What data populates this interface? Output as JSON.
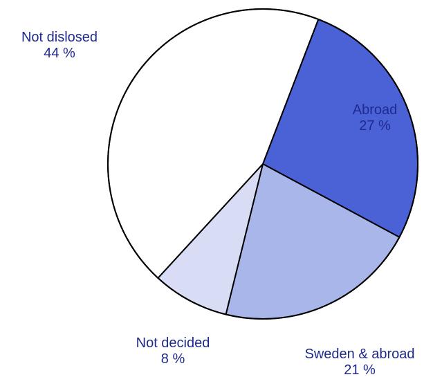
{
  "chart_data": {
    "type": "pie",
    "title": "",
    "slices": [
      {
        "label": "Abroad",
        "value": 27,
        "value_label": "27 %",
        "color": "#4a62d6"
      },
      {
        "label": "Sweden & abroad",
        "value": 21,
        "value_label": "21 %",
        "color": "#a9b6ea"
      },
      {
        "label": "Not decided",
        "value": 8,
        "value_label": "8 %",
        "color": "#d8dcf5"
      },
      {
        "label": "Not dislosed",
        "value": 44,
        "value_label": "44 %",
        "color": "#ffffff"
      }
    ],
    "start_angle_deg": 21,
    "direction": "clockwise",
    "outline_color": "#000000",
    "label_color": "#1f2a8f"
  }
}
